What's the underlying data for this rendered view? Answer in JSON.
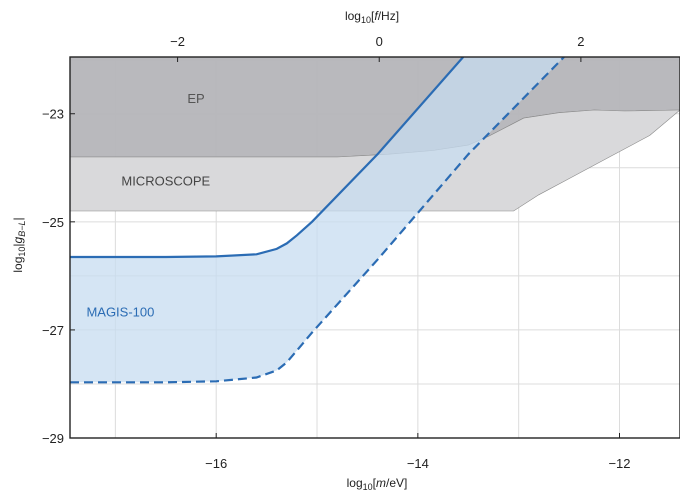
{
  "chart_data": {
    "type": "area",
    "xlabel": "log10[m/eV]",
    "ylabel": "log10|gB-L|",
    "top_xlabel": "log10[f/Hz]",
    "xlim": [
      -17.45,
      -11.4
    ],
    "ylim": [
      -29.0,
      -21.95
    ],
    "top_axis_offset": 14.383,
    "x_ticks": [
      -16,
      -14,
      -12
    ],
    "x_tick_labels": [
      "−16",
      "−14",
      "−12"
    ],
    "y_ticks": [
      -23,
      -25,
      -27,
      -29
    ],
    "y_tick_labels": [
      "−23",
      "−25",
      "−27",
      "−29"
    ],
    "top_ticks": [
      -2,
      0,
      2
    ],
    "top_tick_labels": [
      "−2",
      "0",
      "2"
    ],
    "grid": true,
    "colors": {
      "ep_fill": "#b5b5b9",
      "microscope_fill": "#d9d9db",
      "magis_fill": "#c7dcf0",
      "magis_line": "#2b6cb4",
      "ep_label": "#555555",
      "microscope_label": "#444444",
      "magis_label": "#2b6cb4",
      "grid": "#dcdcdc"
    },
    "regions": [
      {
        "id": "ep",
        "label": "EP",
        "label_at": [
          -16.2,
          -22.8
        ],
        "polygon": [
          [
            -17.45,
            -21.95
          ],
          [
            -11.4,
            -21.95
          ],
          [
            -11.4,
            -22.93
          ],
          [
            -11.95,
            -22.95
          ],
          [
            -12.25,
            -22.93
          ],
          [
            -12.6,
            -22.98
          ],
          [
            -12.95,
            -23.08
          ],
          [
            -13.3,
            -23.42
          ],
          [
            -13.5,
            -23.58
          ],
          [
            -13.85,
            -23.68
          ],
          [
            -14.3,
            -23.75
          ],
          [
            -14.8,
            -23.8
          ],
          [
            -17.45,
            -23.8
          ]
        ]
      },
      {
        "id": "microscope",
        "label": "MICROSCOPE",
        "label_at": [
          -16.5,
          -24.33
        ],
        "polygon": [
          [
            -17.45,
            -23.8
          ],
          [
            -14.8,
            -23.8
          ],
          [
            -14.3,
            -23.75
          ],
          [
            -13.85,
            -23.68
          ],
          [
            -13.5,
            -23.58
          ],
          [
            -13.3,
            -23.42
          ],
          [
            -12.95,
            -23.08
          ],
          [
            -12.6,
            -22.98
          ],
          [
            -12.25,
            -22.93
          ],
          [
            -11.95,
            -22.95
          ],
          [
            -11.4,
            -22.93
          ],
          [
            -11.7,
            -23.4
          ],
          [
            -12.1,
            -23.8
          ],
          [
            -12.5,
            -24.2
          ],
          [
            -12.8,
            -24.5
          ],
          [
            -13.05,
            -24.8
          ],
          [
            -17.45,
            -24.8
          ]
        ]
      }
    ],
    "series": [
      {
        "name": "MAGIS-100",
        "style": "solid",
        "x": [
          -17.45,
          -16.5,
          -16.0,
          -15.6,
          -15.4,
          -15.3,
          -15.2,
          -15.05,
          -14.4,
          -13.55
        ],
        "y": [
          -25.65,
          -25.65,
          -25.64,
          -25.6,
          -25.5,
          -25.4,
          -25.25,
          -25.0,
          -23.75,
          -21.95
        ]
      },
      {
        "name": "MAGIS-100",
        "style": "dashed",
        "x": [
          -17.45,
          -16.5,
          -16.0,
          -15.6,
          -15.4,
          -15.3,
          -15.2,
          -15.05,
          -14.4,
          -13.5,
          -12.55
        ],
        "y": [
          -27.97,
          -27.97,
          -27.95,
          -27.88,
          -27.75,
          -27.6,
          -27.38,
          -27.05,
          -25.7,
          -23.75,
          -21.95
        ]
      }
    ],
    "magis_label_at": [
      -16.95,
      -26.75
    ]
  }
}
